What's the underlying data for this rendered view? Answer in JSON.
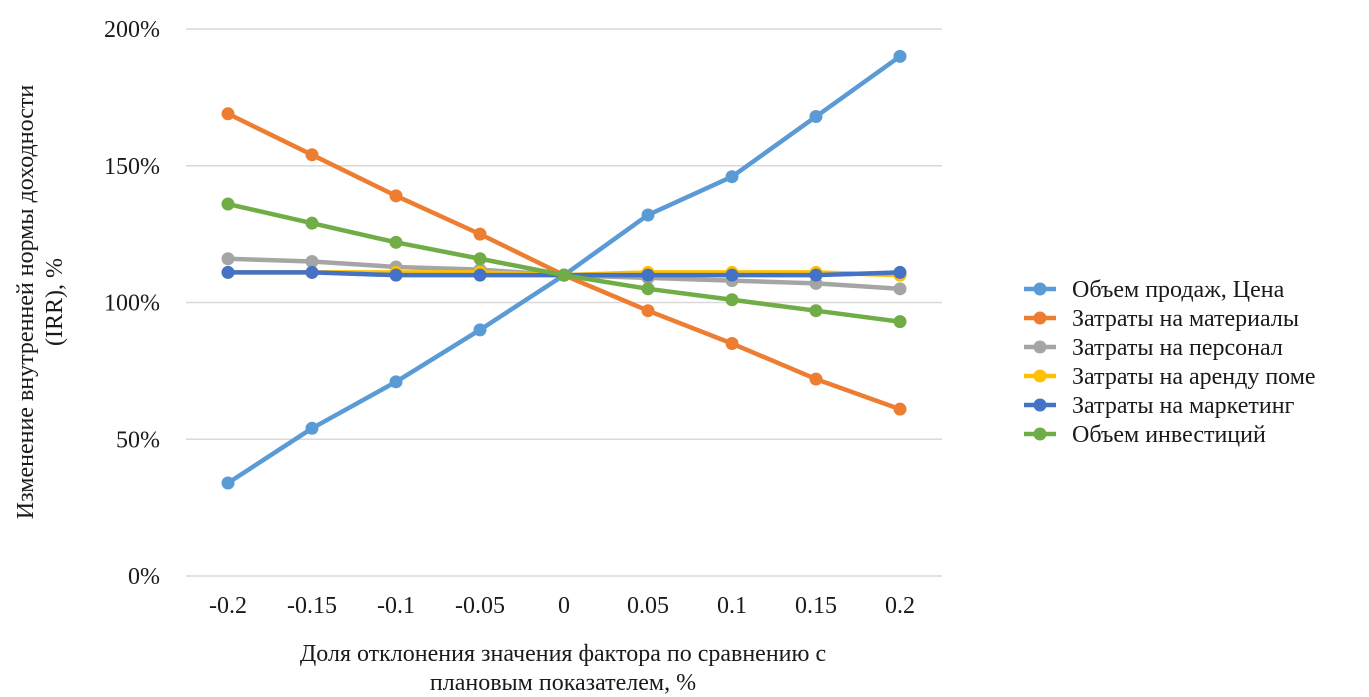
{
  "chart_data": {
    "type": "line",
    "title": "",
    "xlabel": "Доля отклонения значения фактора по сравнению с плановым показателем, %",
    "xlabel_lines": [
      "Доля отклонения значения фактора по сравнению с",
      "плановым показателем, %"
    ],
    "ylabel": "Изменение внутренней нормы доходности (IRR), %",
    "ylabel_lines": [
      "Изменение внутренней нормы доходности",
      "(IRR), %"
    ],
    "categories": [
      "-0.2",
      "-0.15",
      "-0.1",
      "-0.05",
      "0",
      "0.05",
      "0.1",
      "0.15",
      "0.2"
    ],
    "y_ticks": [
      "0%",
      "50%",
      "100%",
      "150%",
      "200%"
    ],
    "ylim": [
      0,
      200
    ],
    "y_unit": "%",
    "grid": "horizontal",
    "legend_position": "right",
    "series": [
      {
        "name": "Объем продаж, Цена",
        "color": "#5b9bd5",
        "values": [
          34,
          54,
          71,
          90,
          110,
          132,
          146,
          168,
          190
        ]
      },
      {
        "name": "Затраты на материалы",
        "color": "#ed7d31",
        "values": [
          169,
          154,
          139,
          125,
          110,
          97,
          85,
          72,
          61
        ]
      },
      {
        "name": "Затраты на персонал",
        "color": "#a5a5a5",
        "values": [
          116,
          115,
          113,
          112,
          110,
          109,
          108,
          107,
          105
        ]
      },
      {
        "name": "Затраты на аренду поме",
        "color": "#ffc000",
        "values": [
          111,
          111,
          111,
          111,
          110,
          111,
          111,
          111,
          110
        ]
      },
      {
        "name": "Затраты на маркетинг",
        "color": "#4472c4",
        "values": [
          111,
          111,
          110,
          110,
          110,
          110,
          110,
          110,
          111
        ]
      },
      {
        "name": "Объем инвестиций",
        "color": "#70ad47",
        "values": [
          136,
          129,
          122,
          116,
          110,
          105,
          101,
          97,
          93
        ]
      }
    ]
  }
}
